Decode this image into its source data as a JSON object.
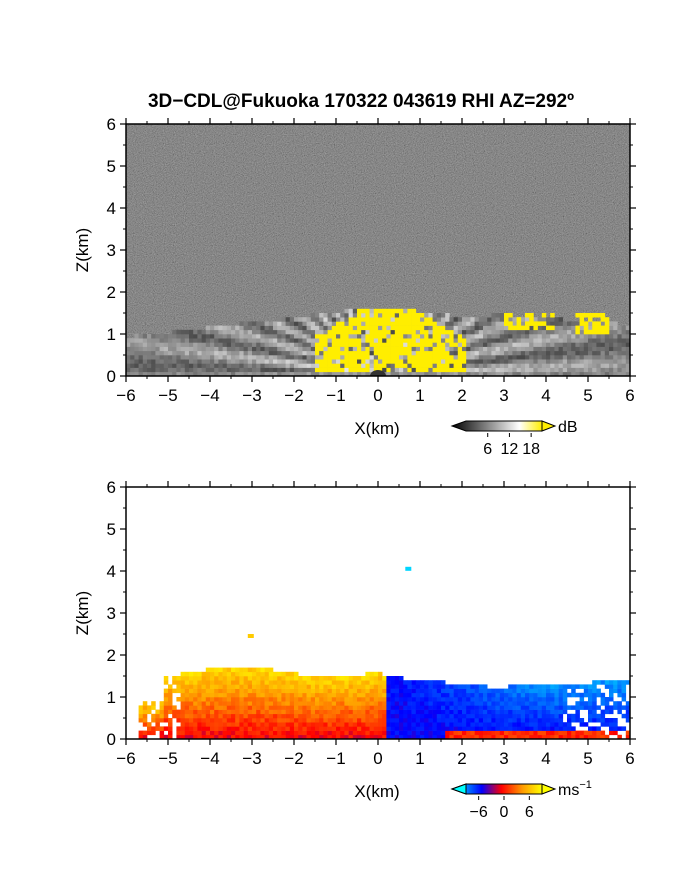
{
  "figure": {
    "title": "3D−CDL@Fukuoka 170322 043619 RHI AZ=292º"
  },
  "chart_data": [
    {
      "type": "heatmap",
      "id": "snr",
      "title": "3D−CDL@Fukuoka 170322 043619 RHI AZ=292º",
      "xlabel": "X(km)",
      "ylabel": "Z(km)",
      "xlim": [
        -6,
        6
      ],
      "ylim": [
        0,
        6
      ],
      "xticks": [
        "−6",
        "−5",
        "−4",
        "−3",
        "−2",
        "−1",
        "0",
        "1",
        "2",
        "3",
        "4",
        "5",
        "6"
      ],
      "yticks": [
        "0",
        "1",
        "2",
        "3",
        "4",
        "5",
        "6"
      ],
      "background": "noise",
      "colorbar": {
        "unit": "dB",
        "ticks": [
          "6",
          "12",
          "18"
        ],
        "range": [
          0,
          21
        ],
        "colors": [
          "#000000",
          "#ffffff",
          "#ffee00"
        ]
      },
      "features": {
        "boundary_layer_top_km": 1.6,
        "saturated_cone_x": [
          -1.6,
          2.0
        ],
        "saturated_cone_top_km": 1.6,
        "elevated_patches": [
          {
            "x": [
              3.0,
              4.2
            ],
            "z": [
              1.1,
              1.5
            ]
          },
          {
            "x": [
              4.7,
              5.4
            ],
            "z": [
              1.0,
              1.5
            ]
          }
        ]
      }
    },
    {
      "type": "heatmap",
      "id": "doppler_velocity",
      "xlabel": "X(km)",
      "ylabel": "Z(km)",
      "xlim": [
        -6,
        6
      ],
      "ylim": [
        0,
        6
      ],
      "xticks": [
        "−6",
        "−5",
        "−4",
        "−3",
        "−2",
        "−1",
        "0",
        "1",
        "2",
        "3",
        "4",
        "5",
        "6"
      ],
      "yticks": [
        "0",
        "1",
        "2",
        "3",
        "4",
        "5",
        "6"
      ],
      "background": "#ffffff",
      "colorbar": {
        "unit": "ms",
        "unit_exponent": "−1",
        "ticks": [
          "−6",
          "0",
          "6"
        ],
        "range": [
          -9,
          9
        ],
        "colors": [
          "#00ffff",
          "#0000ff",
          "#ff0000",
          "#ffff00"
        ]
      },
      "features": {
        "positive_region_x": [
          -5.5,
          0.0
        ],
        "negative_region_x": [
          0.0,
          6.0
        ],
        "layer_top_km": 1.7,
        "isolated_points": [
          {
            "x": 0.65,
            "z": 4.05,
            "v": -8
          },
          {
            "x": -3.1,
            "z": 2.45,
            "v": 7
          }
        ]
      }
    }
  ]
}
